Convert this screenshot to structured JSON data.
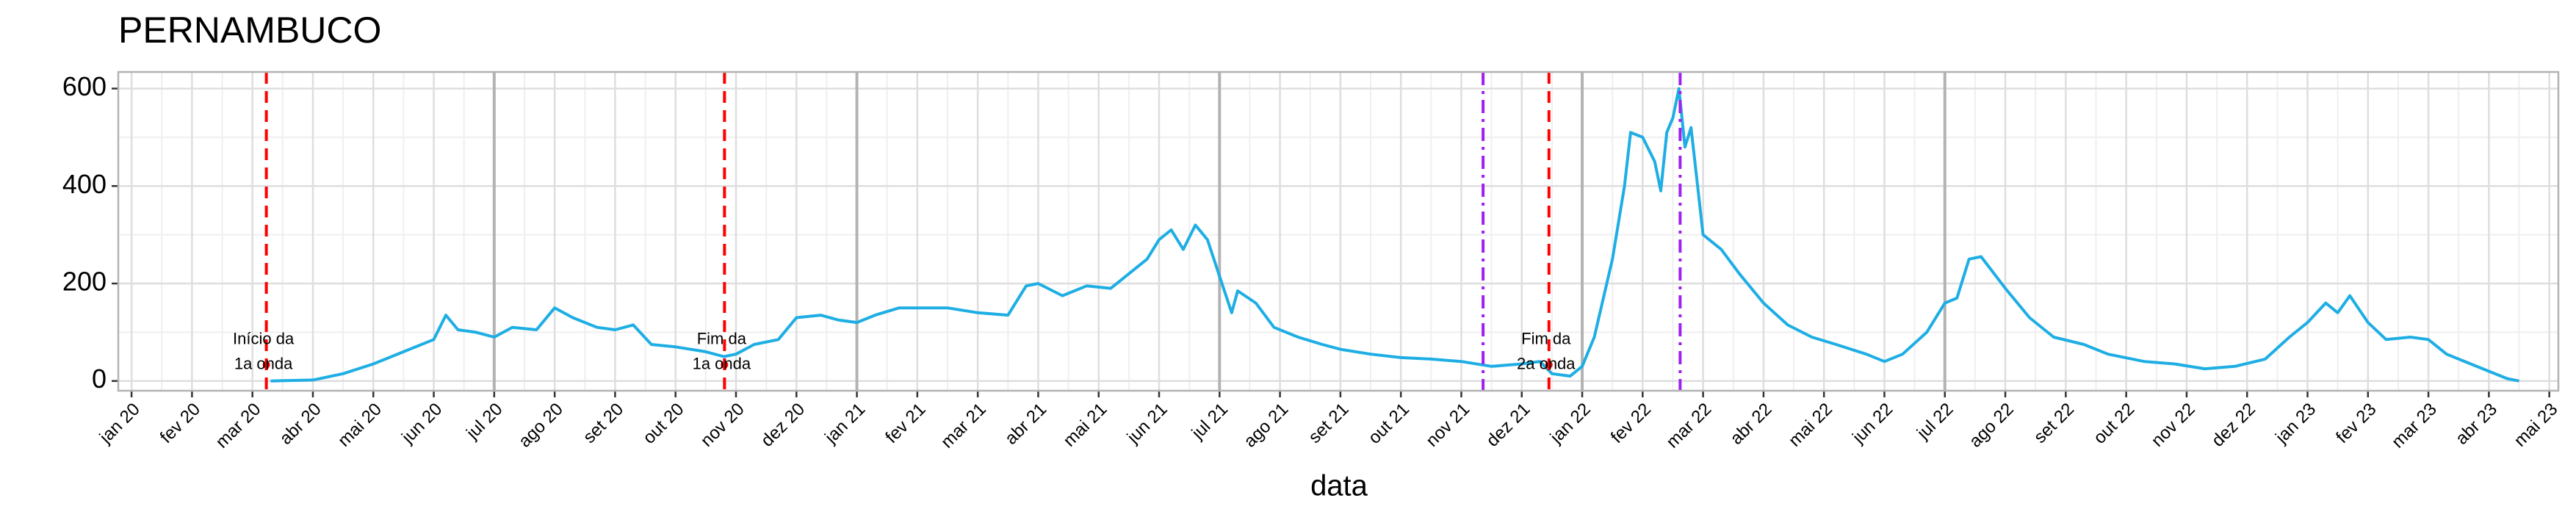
{
  "chart_data": {
    "type": "line",
    "title": "PERNAMBUCO",
    "x_label": "data",
    "color": "#1eaee4",
    "grid": true,
    "xlim": [
      -0.22,
      40.15
    ],
    "ylim": [
      -20,
      634
    ],
    "yticks": [
      0,
      200,
      400,
      600
    ],
    "xticks": [
      {
        "value": 0,
        "label": "jan 20"
      },
      {
        "value": 1,
        "label": "fev 20"
      },
      {
        "value": 2,
        "label": "mar 20"
      },
      {
        "value": 3,
        "label": "abr 20"
      },
      {
        "value": 4,
        "label": "mai 20"
      },
      {
        "value": 5,
        "label": "jun 20"
      },
      {
        "value": 6,
        "label": "jul 20"
      },
      {
        "value": 7,
        "label": "ago 20"
      },
      {
        "value": 8,
        "label": "set 20"
      },
      {
        "value": 9,
        "label": "out 20"
      },
      {
        "value": 10,
        "label": "nov 20"
      },
      {
        "value": 11,
        "label": "dez 20"
      },
      {
        "value": 12,
        "label": "jan 21"
      },
      {
        "value": 13,
        "label": "fev 21"
      },
      {
        "value": 14,
        "label": "mar 21"
      },
      {
        "value": 15,
        "label": "abr 21"
      },
      {
        "value": 16,
        "label": "mai 21"
      },
      {
        "value": 17,
        "label": "jun 21"
      },
      {
        "value": 18,
        "label": "jul 21"
      },
      {
        "value": 19,
        "label": "ago 21"
      },
      {
        "value": 20,
        "label": "set 21"
      },
      {
        "value": 21,
        "label": "out 21"
      },
      {
        "value": 22,
        "label": "nov 21"
      },
      {
        "value": 23,
        "label": "dez 21"
      },
      {
        "value": 24,
        "label": "jan 22"
      },
      {
        "value": 25,
        "label": "fev 22"
      },
      {
        "value": 26,
        "label": "mar 22"
      },
      {
        "value": 27,
        "label": "abr 22"
      },
      {
        "value": 28,
        "label": "mai 22"
      },
      {
        "value": 29,
        "label": "jun 22"
      },
      {
        "value": 30,
        "label": "jul 22"
      },
      {
        "value": 31,
        "label": "ago 22"
      },
      {
        "value": 32,
        "label": "set 22"
      },
      {
        "value": 33,
        "label": "out 22"
      },
      {
        "value": 34,
        "label": "nov 22"
      },
      {
        "value": 35,
        "label": "dez 22"
      },
      {
        "value": 36,
        "label": "jan 23"
      },
      {
        "value": 37,
        "label": "fev 23"
      },
      {
        "value": 38,
        "label": "mar 23"
      },
      {
        "value": 39,
        "label": "abr 23"
      },
      {
        "value": 40,
        "label": "mai 23"
      }
    ],
    "x": [
      2.3,
      3.0,
      3.5,
      4.0,
      4.5,
      5.0,
      5.2,
      5.4,
      5.7,
      6.0,
      6.3,
      6.7,
      7.0,
      7.3,
      7.7,
      8.0,
      8.3,
      8.6,
      9.0,
      9.5,
      9.8,
      10.0,
      10.3,
      10.7,
      11.0,
      11.4,
      11.7,
      12.0,
      12.3,
      12.7,
      13.0,
      13.5,
      14.0,
      14.5,
      14.8,
      15.0,
      15.4,
      15.8,
      16.2,
      16.5,
      16.8,
      17.0,
      17.2,
      17.4,
      17.6,
      17.8,
      18.0,
      18.2,
      18.3,
      18.6,
      18.9,
      19.3,
      19.7,
      20.0,
      20.5,
      21.0,
      21.5,
      22.0,
      22.5,
      23.0,
      23.3,
      23.5,
      23.8,
      24.0,
      24.2,
      24.5,
      24.7,
      24.8,
      25.0,
      25.2,
      25.3,
      25.4,
      25.5,
      25.6,
      25.7,
      25.8,
      26.0,
      26.3,
      26.6,
      27.0,
      27.4,
      27.8,
      28.2,
      28.7,
      29.0,
      29.3,
      29.7,
      30.0,
      30.2,
      30.4,
      30.6,
      31.0,
      31.4,
      31.8,
      32.3,
      32.7,
      33.3,
      33.8,
      34.3,
      34.8,
      35.3,
      35.7,
      36.0,
      36.3,
      36.5,
      36.7,
      37.0,
      37.3,
      37.7,
      38.0,
      38.3,
      38.7,
      39.0,
      39.3,
      39.5
    ],
    "values": [
      0,
      2,
      15,
      35,
      60,
      85,
      135,
      105,
      100,
      90,
      110,
      105,
      150,
      130,
      110,
      105,
      115,
      75,
      70,
      60,
      50,
      55,
      75,
      85,
      130,
      135,
      125,
      120,
      135,
      150,
      150,
      150,
      140,
      135,
      195,
      200,
      175,
      195,
      190,
      220,
      250,
      290,
      310,
      270,
      320,
      290,
      215,
      140,
      185,
      160,
      110,
      90,
      75,
      65,
      55,
      48,
      45,
      40,
      30,
      35,
      40,
      15,
      10,
      30,
      90,
      250,
      400,
      510,
      500,
      450,
      390,
      510,
      540,
      600,
      480,
      520,
      300,
      270,
      220,
      160,
      115,
      90,
      75,
      55,
      40,
      55,
      100,
      160,
      170,
      250,
      255,
      190,
      130,
      90,
      75,
      55,
      40,
      35,
      25,
      30,
      45,
      90,
      120,
      160,
      140,
      175,
      120,
      85,
      90,
      85,
      55,
      35,
      20,
      5,
      0
    ],
    "reference_lines": [
      6,
      12,
      18,
      24,
      30
    ],
    "vlines": [
      {
        "x": 2.23,
        "color": "#ff0000",
        "style": "dashed",
        "label": [
          "Início da",
          "1a onda"
        ]
      },
      {
        "x": 9.81,
        "color": "#ff0000",
        "style": "dashed",
        "label": [
          "Fim da",
          "1a onda"
        ]
      },
      {
        "x": 23.45,
        "color": "#ff0000",
        "style": "dashed",
        "label": [
          "Fim da",
          "2a onda"
        ]
      },
      {
        "x": 22.36,
        "color": "#a020f0",
        "style": "dashdot"
      },
      {
        "x": 25.62,
        "color": "#a020f0",
        "style": "dashdot"
      }
    ]
  }
}
